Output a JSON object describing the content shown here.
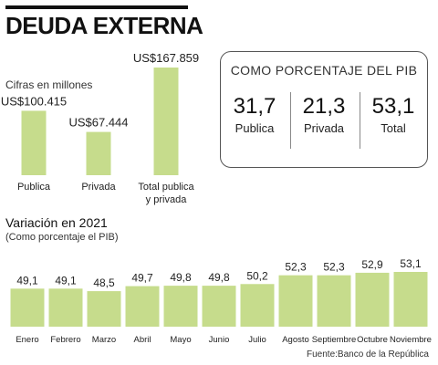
{
  "title": "DEUDA EXTERNA",
  "units_note": "Cifras en millones",
  "colors": {
    "bar": "#c6dc8c",
    "text": "#222222"
  },
  "percent_box": {
    "title": "COMO PORCENTAJE DEL PIB",
    "items": [
      {
        "value": "31,7",
        "label": "Publica"
      },
      {
        "value": "21,3",
        "label": "Privada"
      },
      {
        "value": "53,1",
        "label": "Total"
      }
    ]
  },
  "monthly_title": "Variación en 2021",
  "monthly_note": "(Como porcentaje el PIB)",
  "source": "Fuente:Banco de la República",
  "chart_data": [
    {
      "type": "bar",
      "categories": [
        "Publica",
        "Privada",
        "Total publica y privada"
      ],
      "category_lines": [
        [
          "Publica"
        ],
        [
          "Privada"
        ],
        [
          "Total publica",
          "y privada"
        ]
      ],
      "values": [
        100415,
        67444,
        167859
      ],
      "value_labels": [
        "US$100.415",
        "US$67.444",
        "US$167.859"
      ],
      "ylim": [
        0,
        167859
      ],
      "grid": false
    },
    {
      "type": "bar",
      "categories": [
        "Enero",
        "Febrero",
        "Marzo",
        "Abril",
        "Mayo",
        "Junio",
        "Julio",
        "Agosto",
        "Septiembre",
        "Octubre",
        "Noviembre"
      ],
      "values": [
        49.1,
        49.1,
        48.5,
        49.7,
        49.8,
        49.8,
        50.2,
        52.3,
        52.3,
        52.9,
        53.1
      ],
      "value_labels": [
        "49,1",
        "49,1",
        "48,5",
        "49,7",
        "49,8",
        "49,8",
        "50,2",
        "52,3",
        "52,3",
        "52,9",
        "53,1"
      ],
      "ylim": [
        40,
        53.1
      ],
      "grid": false
    }
  ]
}
